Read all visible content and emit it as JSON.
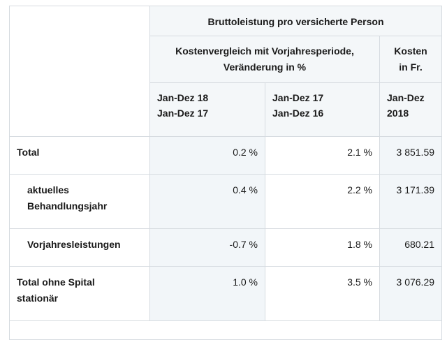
{
  "header": {
    "title": "Bruttoleistung pro versicherte Person",
    "comparison_line1": "Kostenvergleich mit Vorjahresperiode,",
    "comparison_line2": "Veränderung in %",
    "cost_line1": "Kosten",
    "cost_line2": "in Fr.",
    "periods": [
      {
        "line1": "Jan-Dez 18",
        "line2": "Jan-Dez 17"
      },
      {
        "line1": "Jan-Dez 17",
        "line2": "Jan-Dez 16"
      },
      {
        "line1": "Jan-Dez",
        "line2": "2018"
      }
    ]
  },
  "rows": [
    {
      "label": "Total",
      "change_18_17": "0.2 %",
      "change_17_16": "2.1 %",
      "cost_2018": "3 851.59"
    },
    {
      "label_line1": "aktuelles",
      "label_line2": "Behandlungsjahr",
      "change_18_17": "0.4 %",
      "change_17_16": "2.2 %",
      "cost_2018": "3 171.39"
    },
    {
      "label": "Vorjahresleistungen",
      "change_18_17": "-0.7 %",
      "change_17_16": "1.8 %",
      "cost_2018": "680.21"
    },
    {
      "label_line1": "Total ohne Spital",
      "label_line2": "stationär",
      "change_18_17": "1.0 %",
      "change_17_16": "3.5 %",
      "cost_2018": "3 076.29"
    }
  ]
}
